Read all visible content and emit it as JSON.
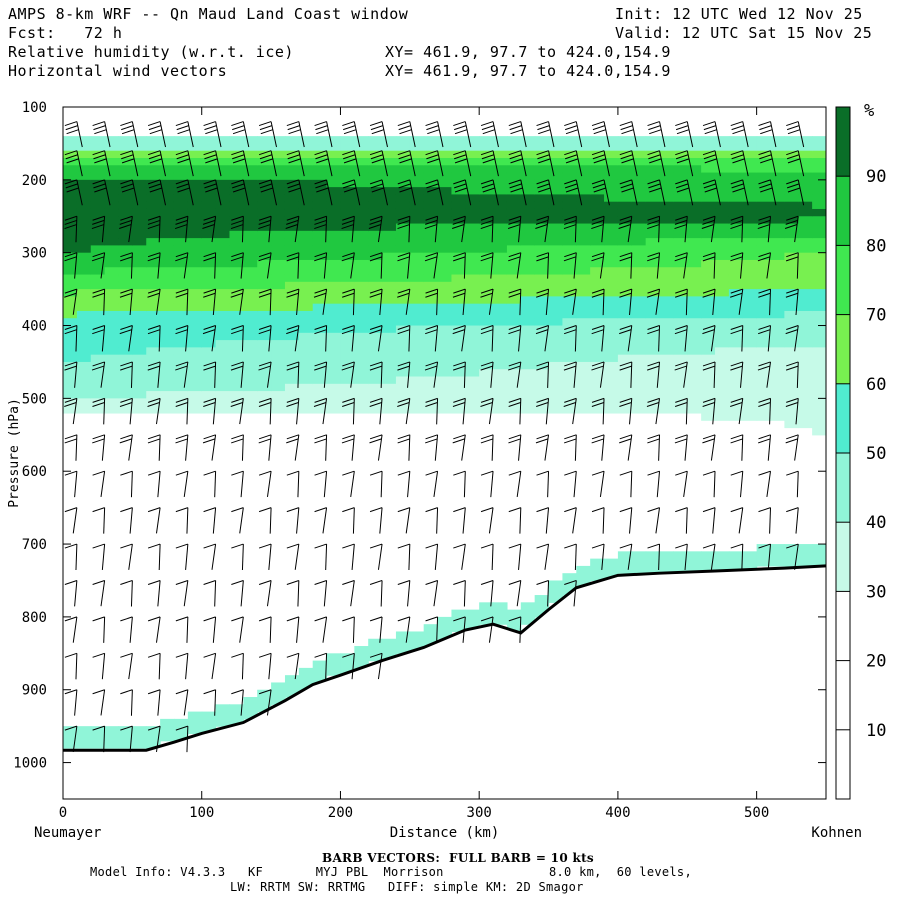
{
  "header": {
    "title": "AMPS 8-km WRF -- Qn Maud Land Coast window",
    "init": "Init: 12 UTC Wed 12 Nov 25",
    "fcst": "Fcst:   72 h",
    "valid": "Valid: 12 UTC Sat 15 Nov 25",
    "field1": "Relative humidity (w.r.t. ice)",
    "field2": "Horizontal wind vectors",
    "xy1": "XY= 461.9, 97.7 to 424.0,154.9",
    "xy2": "XY= 461.9, 97.7 to 424.0,154.9"
  },
  "footer": {
    "barb_note": "BARB VECTORS:  FULL BARB = 10 kts",
    "model_info": "Model Info: V4.3.3   KF       MYJ PBL  Morrison              8.0 km,  60 levels,",
    "model_info2": "LW: RRTM SW: RRTMG   DIFF: simple KM: 2D Smagor"
  },
  "chart_data": {
    "type": "heatmap",
    "title": "Relative humidity (w.r.t. ice) cross-section with horizontal wind barbs",
    "xlabel": "Distance (km)",
    "ylabel": "Pressure (hPa)",
    "xlim": [
      0,
      550
    ],
    "ylim": [
      1050,
      100
    ],
    "x_ticks": [
      "0",
      "100",
      "200",
      "300",
      "400",
      "500"
    ],
    "x_tick_values": [
      0,
      100,
      200,
      300,
      400,
      500
    ],
    "y_ticks": [
      "100",
      "200",
      "300",
      "400",
      "500",
      "600",
      "700",
      "800",
      "900",
      "1000"
    ],
    "y_tick_values": [
      100,
      200,
      300,
      400,
      500,
      600,
      700,
      800,
      900,
      1000
    ],
    "x_endpoints": {
      "start": "Neumayer",
      "end": "Kohnen"
    },
    "colorbar": {
      "unit": "%",
      "labels": [
        "90",
        "80",
        "70",
        "60",
        "50",
        "40",
        "30",
        "20",
        "10"
      ],
      "label_values": [
        90,
        80,
        70,
        60,
        50,
        40,
        30,
        20,
        10
      ],
      "levels": [
        0,
        30,
        40,
        50,
        60,
        70,
        80,
        90,
        100
      ],
      "colors": [
        "#ffffff",
        "#c6fae8",
        "#90f5d8",
        "#50ecd0",
        "#78f050",
        "#40e850",
        "#20c840",
        "#0a6e28"
      ]
    },
    "terrain": {
      "distance_km": [
        0,
        60,
        80,
        100,
        130,
        160,
        180,
        200,
        230,
        260,
        290,
        310,
        330,
        350,
        370,
        400,
        430,
        470,
        520,
        550
      ],
      "surface_pressure_hPa": [
        983,
        983,
        972,
        960,
        945,
        915,
        893,
        880,
        860,
        842,
        818,
        810,
        822,
        790,
        760,
        743,
        740,
        737,
        733,
        730
      ]
    },
    "rh_profile": {
      "pressure_hPa": [
        150,
        175,
        200,
        250,
        300,
        350,
        400,
        450,
        500,
        550,
        600
      ],
      "coast_rh_percent": [
        40,
        80,
        92,
        95,
        90,
        72,
        55,
        50,
        40,
        10,
        5
      ],
      "inland_rh_percent": [
        40,
        75,
        85,
        92,
        70,
        60,
        45,
        35,
        32,
        30,
        20
      ]
    },
    "wind_barbs": {
      "full_barb_kts": 10,
      "columns_km": [
        10,
        30,
        50,
        70,
        90,
        110,
        130,
        150,
        170,
        190,
        210,
        230,
        250,
        270,
        290,
        310,
        330,
        350,
        370,
        390,
        410,
        430,
        450,
        470,
        490,
        510,
        530
      ],
      "levels_hPa": [
        120,
        160,
        200,
        250,
        300,
        350,
        400,
        450,
        500,
        550,
        600,
        650,
        700,
        750,
        800,
        850,
        900,
        950
      ]
    }
  }
}
